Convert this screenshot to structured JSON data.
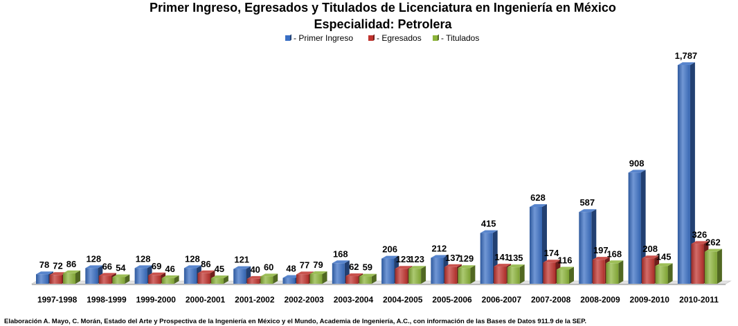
{
  "chart_data": {
    "type": "bar",
    "title": "Primer Ingreso, Egresados y Titulados de Licenciatura en Ingeniería en México",
    "subtitle": "Especialidad:  Petrolera",
    "categories": [
      "1997-1998",
      "1998-1999",
      "1999-2000",
      "2000-2001",
      "2001-2002",
      "2002-2003",
      "2003-2004",
      "2004-2005",
      "2005-2006",
      "2006-2007",
      "2007-2008",
      "2008-2009",
      "2009-2010",
      "2010-2011"
    ],
    "series": [
      {
        "name": "- Primer Ingreso",
        "color": "#3a6fc4",
        "values": [
          78,
          128,
          128,
          128,
          121,
          48,
          168,
          206,
          212,
          415,
          628,
          587,
          908,
          1787
        ]
      },
      {
        "name": "- Egresados",
        "color": "#c0332e",
        "values": [
          72,
          66,
          69,
          86,
          40,
          77,
          62,
          123,
          137,
          141,
          174,
          197,
          208,
          326
        ]
      },
      {
        "name": "- Titulados",
        "color": "#8cb43a",
        "values": [
          86,
          54,
          46,
          45,
          60,
          79,
          59,
          123,
          129,
          135,
          116,
          168,
          145,
          262
        ]
      }
    ],
    "value_labels": [
      [
        "78",
        "128",
        "128",
        "128",
        "121",
        "48",
        "168",
        "206",
        "212",
        "415",
        "628",
        "587",
        "908",
        "1,787"
      ],
      [
        "72",
        "66",
        "69",
        "86",
        "40",
        "77",
        "62",
        "123",
        "137",
        "141",
        "174",
        "197",
        "208",
        "326"
      ],
      [
        "86",
        "54",
        "46",
        "45",
        "60",
        "79",
        "59",
        "123",
        "129",
        "135",
        "116",
        "168",
        "145",
        "262"
      ]
    ],
    "ylim": [
      0,
      1800
    ],
    "grid": false,
    "legend_position": "top-center",
    "source": "Elaboración A. Mayo, C. Morán, Estado del Arte y Prospectiva de la Ingeniería en México y el Mundo,  Academia de Ingeniería, A.C., con información de las Bases de Datos 911.9 de la SEP."
  }
}
